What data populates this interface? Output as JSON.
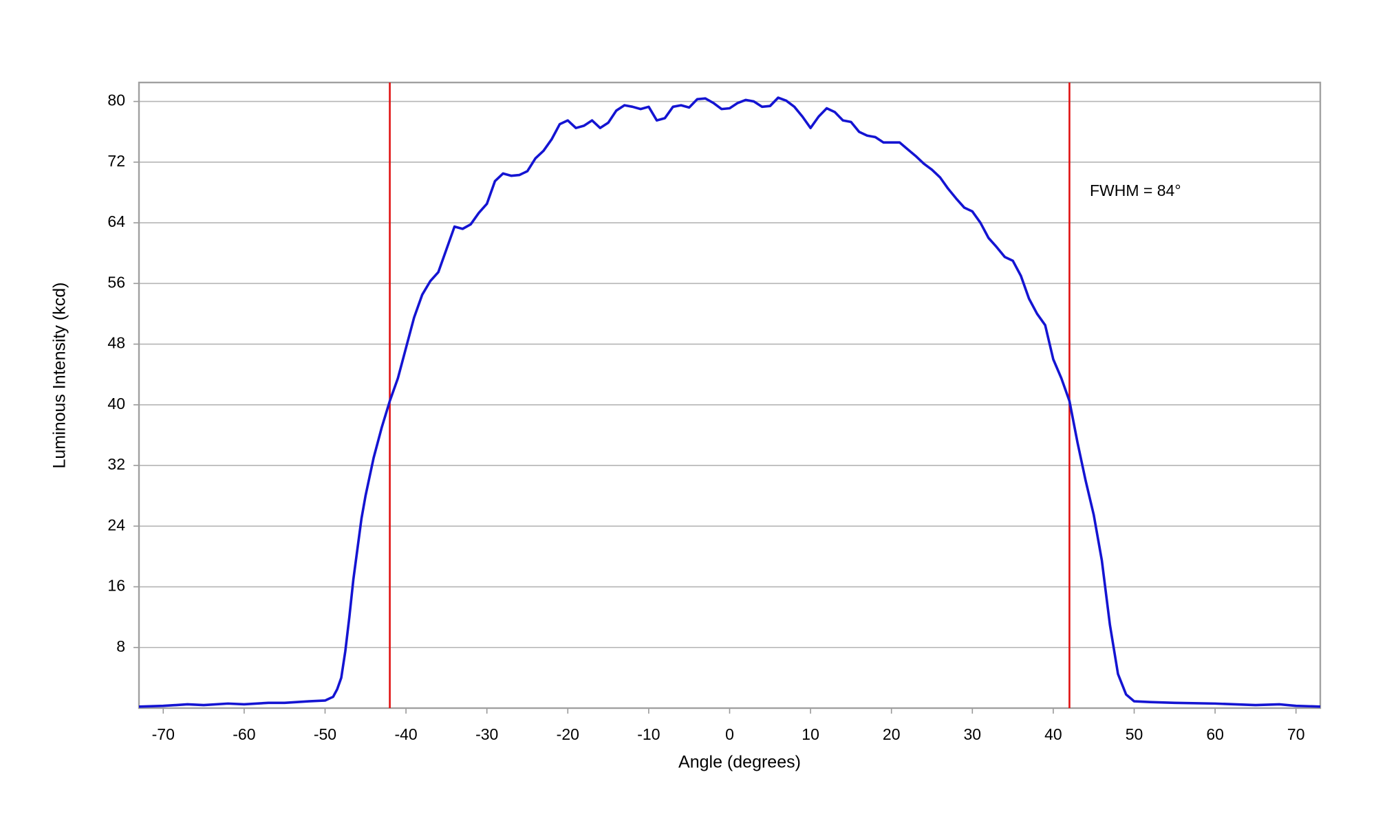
{
  "chart_data": {
    "type": "line",
    "xlabel": "Angle (degrees)",
    "ylabel": "Luminous Intensity (kcd)",
    "annotation": "FWHM = 84°",
    "color": "#1414d2",
    "marker_color": "#e01010",
    "markers": [
      -42,
      42
    ],
    "grid": true,
    "xlim": [
      -73,
      73
    ],
    "ylim": [
      0,
      82.5
    ],
    "xticks": [
      -70,
      -60,
      -50,
      -40,
      -30,
      -20,
      -10,
      0,
      10,
      20,
      30,
      40,
      50,
      60,
      70
    ],
    "yticks": [
      8,
      16,
      24,
      32,
      40,
      48,
      56,
      64,
      72,
      80
    ],
    "x": [
      -73,
      -70,
      -67,
      -65,
      -62,
      -60,
      -57,
      -55,
      -52,
      -50,
      -49,
      -48.5,
      -48,
      -47.5,
      -47,
      -46.5,
      -46,
      -45.5,
      -45,
      -44,
      -43,
      -42,
      -41,
      -40,
      -39,
      -38,
      -37,
      -36,
      -35,
      -34,
      -33,
      -32,
      -31,
      -30,
      -29,
      -28,
      -27,
      -26,
      -25,
      -24,
      -23,
      -22,
      -21,
      -20,
      -19,
      -18,
      -17,
      -16,
      -15,
      -14,
      -13,
      -12,
      -11,
      -10,
      -9,
      -8,
      -7,
      -6,
      -5,
      -4,
      -3,
      -2,
      -1,
      0,
      1,
      2,
      3,
      4,
      5,
      6,
      7,
      8,
      9,
      10,
      11,
      12,
      13,
      14,
      15,
      16,
      17,
      18,
      19,
      20,
      21,
      22,
      23,
      24,
      25,
      26,
      27,
      28,
      29,
      30,
      31,
      32,
      33,
      34,
      35,
      36,
      37,
      38,
      39,
      40,
      41,
      42,
      43,
      44,
      45,
      46,
      47,
      48,
      49,
      50,
      52,
      55,
      60,
      65,
      68,
      70,
      73
    ],
    "values": [
      0.2,
      0.3,
      0.5,
      0.4,
      0.6,
      0.5,
      0.7,
      0.7,
      0.9,
      1.0,
      1.5,
      2.5,
      4,
      7.5,
      12,
      17,
      21,
      25,
      28,
      33,
      37,
      40.5,
      43.5,
      47.5,
      51.5,
      54.5,
      56.3,
      57.5,
      60.5,
      63.5,
      63.2,
      63.8,
      65.3,
      66.5,
      69.5,
      70.5,
      70.2,
      70.3,
      70.8,
      72.5,
      73.5,
      75,
      77,
      77.5,
      76.5,
      76.8,
      77.5,
      76.5,
      77.2,
      78.8,
      79.5,
      79.3,
      79,
      79.3,
      77.5,
      77.8,
      79.3,
      79.5,
      79.2,
      80.3,
      80.4,
      79.8,
      79,
      79.1,
      79.8,
      80.2,
      80,
      79.3,
      79.4,
      80.5,
      80.1,
      79.3,
      78,
      76.5,
      78,
      79.1,
      78.6,
      77.5,
      77.3,
      76,
      75.5,
      75.3,
      74.6,
      74.6,
      74.6,
      73.7,
      72.8,
      71.8,
      71,
      70,
      68.5,
      67.2,
      66,
      65.5,
      64,
      62,
      60.8,
      59.5,
      59,
      57,
      54,
      52,
      50.5,
      46,
      43.5,
      40.5,
      35,
      30,
      25.5,
      19.5,
      11,
      4.5,
      1.8,
      0.9,
      0.8,
      0.7,
      0.6,
      0.4,
      0.5,
      0.3,
      0.2
    ]
  }
}
